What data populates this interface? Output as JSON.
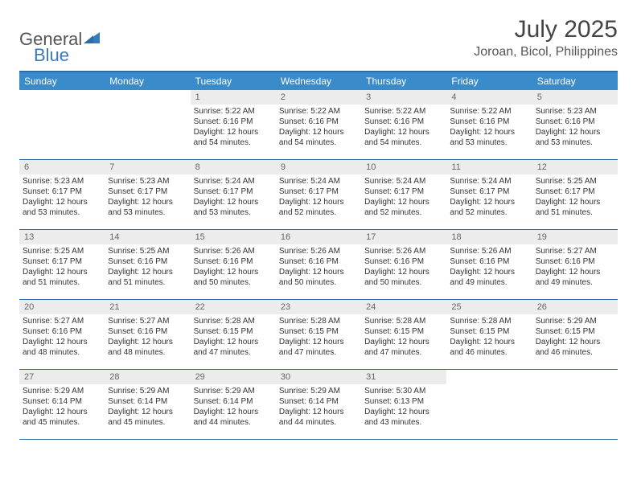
{
  "logo": {
    "g": "General",
    "b": "Blue"
  },
  "title": "July 2025",
  "location": "Joroan, Bicol, Philippines",
  "colors": {
    "header_bg": "#3a8bc9",
    "border": "#2e6da4",
    "daynum_bg": "#ececec",
    "logo_blue": "#3a7ab8"
  },
  "weekdays": [
    "Sunday",
    "Monday",
    "Tuesday",
    "Wednesday",
    "Thursday",
    "Friday",
    "Saturday"
  ],
  "first_weekday": 2,
  "days": [
    {
      "n": 1,
      "sr": "5:22 AM",
      "ss": "6:16 PM",
      "dl": "12 hours and 54 minutes."
    },
    {
      "n": 2,
      "sr": "5:22 AM",
      "ss": "6:16 PM",
      "dl": "12 hours and 54 minutes."
    },
    {
      "n": 3,
      "sr": "5:22 AM",
      "ss": "6:16 PM",
      "dl": "12 hours and 54 minutes."
    },
    {
      "n": 4,
      "sr": "5:22 AM",
      "ss": "6:16 PM",
      "dl": "12 hours and 53 minutes."
    },
    {
      "n": 5,
      "sr": "5:23 AM",
      "ss": "6:16 PM",
      "dl": "12 hours and 53 minutes."
    },
    {
      "n": 6,
      "sr": "5:23 AM",
      "ss": "6:17 PM",
      "dl": "12 hours and 53 minutes."
    },
    {
      "n": 7,
      "sr": "5:23 AM",
      "ss": "6:17 PM",
      "dl": "12 hours and 53 minutes."
    },
    {
      "n": 8,
      "sr": "5:24 AM",
      "ss": "6:17 PM",
      "dl": "12 hours and 53 minutes."
    },
    {
      "n": 9,
      "sr": "5:24 AM",
      "ss": "6:17 PM",
      "dl": "12 hours and 52 minutes."
    },
    {
      "n": 10,
      "sr": "5:24 AM",
      "ss": "6:17 PM",
      "dl": "12 hours and 52 minutes."
    },
    {
      "n": 11,
      "sr": "5:24 AM",
      "ss": "6:17 PM",
      "dl": "12 hours and 52 minutes."
    },
    {
      "n": 12,
      "sr": "5:25 AM",
      "ss": "6:17 PM",
      "dl": "12 hours and 51 minutes."
    },
    {
      "n": 13,
      "sr": "5:25 AM",
      "ss": "6:17 PM",
      "dl": "12 hours and 51 minutes."
    },
    {
      "n": 14,
      "sr": "5:25 AM",
      "ss": "6:16 PM",
      "dl": "12 hours and 51 minutes."
    },
    {
      "n": 15,
      "sr": "5:26 AM",
      "ss": "6:16 PM",
      "dl": "12 hours and 50 minutes."
    },
    {
      "n": 16,
      "sr": "5:26 AM",
      "ss": "6:16 PM",
      "dl": "12 hours and 50 minutes."
    },
    {
      "n": 17,
      "sr": "5:26 AM",
      "ss": "6:16 PM",
      "dl": "12 hours and 50 minutes."
    },
    {
      "n": 18,
      "sr": "5:26 AM",
      "ss": "6:16 PM",
      "dl": "12 hours and 49 minutes."
    },
    {
      "n": 19,
      "sr": "5:27 AM",
      "ss": "6:16 PM",
      "dl": "12 hours and 49 minutes."
    },
    {
      "n": 20,
      "sr": "5:27 AM",
      "ss": "6:16 PM",
      "dl": "12 hours and 48 minutes."
    },
    {
      "n": 21,
      "sr": "5:27 AM",
      "ss": "6:16 PM",
      "dl": "12 hours and 48 minutes."
    },
    {
      "n": 22,
      "sr": "5:28 AM",
      "ss": "6:15 PM",
      "dl": "12 hours and 47 minutes."
    },
    {
      "n": 23,
      "sr": "5:28 AM",
      "ss": "6:15 PM",
      "dl": "12 hours and 47 minutes."
    },
    {
      "n": 24,
      "sr": "5:28 AM",
      "ss": "6:15 PM",
      "dl": "12 hours and 47 minutes."
    },
    {
      "n": 25,
      "sr": "5:28 AM",
      "ss": "6:15 PM",
      "dl": "12 hours and 46 minutes."
    },
    {
      "n": 26,
      "sr": "5:29 AM",
      "ss": "6:15 PM",
      "dl": "12 hours and 46 minutes."
    },
    {
      "n": 27,
      "sr": "5:29 AM",
      "ss": "6:14 PM",
      "dl": "12 hours and 45 minutes."
    },
    {
      "n": 28,
      "sr": "5:29 AM",
      "ss": "6:14 PM",
      "dl": "12 hours and 45 minutes."
    },
    {
      "n": 29,
      "sr": "5:29 AM",
      "ss": "6:14 PM",
      "dl": "12 hours and 44 minutes."
    },
    {
      "n": 30,
      "sr": "5:29 AM",
      "ss": "6:14 PM",
      "dl": "12 hours and 44 minutes."
    },
    {
      "n": 31,
      "sr": "5:30 AM",
      "ss": "6:13 PM",
      "dl": "12 hours and 43 minutes."
    }
  ],
  "labels": {
    "sunrise": "Sunrise:",
    "sunset": "Sunset:",
    "daylight": "Daylight:"
  }
}
